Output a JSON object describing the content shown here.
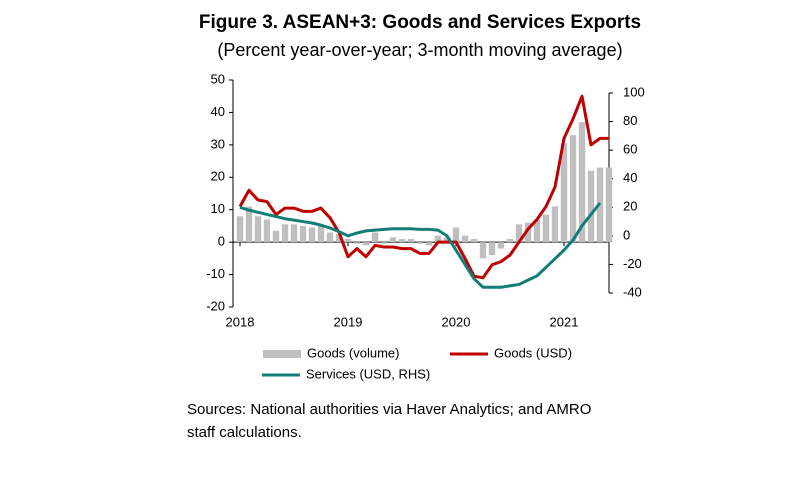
{
  "chart_data": {
    "type": "bar-line",
    "title": "Figure 3. ASEAN+3: Goods and Services Exports",
    "subtitle": "(Percent year-over-year; 3-month moving average)",
    "categories": [
      "2018",
      null,
      null,
      null,
      null,
      null,
      null,
      null,
      null,
      null,
      null,
      null,
      "2019",
      null,
      null,
      null,
      null,
      null,
      null,
      null,
      null,
      null,
      null,
      null,
      "2020",
      null,
      null,
      null,
      null,
      null,
      null,
      null,
      null,
      null,
      null,
      null,
      "2021",
      null,
      null,
      null,
      null,
      null
    ],
    "series": [
      {
        "name": "Goods (volume)",
        "type": "bar",
        "color": "#bfbfbf",
        "values": [
          8,
          11,
          8,
          7,
          3.5,
          5.5,
          5.5,
          5,
          4.5,
          5,
          3,
          2.5,
          1,
          -0.5,
          -1,
          3,
          -0.5,
          1.5,
          1,
          1,
          -0.5,
          -1,
          2,
          1.5,
          4.5,
          2,
          1,
          -5,
          -4,
          -2,
          1,
          5.5,
          6,
          7,
          8.5,
          11,
          30.5,
          33,
          37,
          22,
          23,
          23
        ]
      },
      {
        "name": "Goods (USD)",
        "type": "line",
        "color": "#c00000",
        "values": [
          11,
          16,
          13,
          12.5,
          8.5,
          10.5,
          10.5,
          9.5,
          9.5,
          10.5,
          7.5,
          3,
          -4.5,
          -2,
          -4.5,
          -1,
          -1.5,
          -1.5,
          -2,
          -2,
          -3.5,
          -3.5,
          0,
          0,
          0,
          -5,
          -10.5,
          -11,
          -7,
          -6,
          -4,
          0,
          4,
          7,
          11,
          17,
          32,
          38,
          45,
          30,
          32,
          32
        ]
      },
      {
        "name": "Services (USD, RHS)",
        "type": "line",
        "axis": "y2",
        "color": "#137d78",
        "values": [
          20,
          18,
          16.5,
          15,
          13.5,
          12,
          11,
          10,
          9,
          7.5,
          5.5,
          3,
          0,
          2,
          3.5,
          4,
          4.5,
          5,
          5,
          5,
          4.5,
          4.5,
          4,
          0,
          -10,
          -20,
          -30,
          -36,
          -36,
          -36,
          -35,
          -34,
          -31,
          -28,
          -22,
          -16,
          -10,
          -3,
          7,
          15,
          23,
          null
        ]
      }
    ],
    "ylim": [
      -20,
      50
    ],
    "yticks": [
      -20,
      -10,
      0,
      10,
      20,
      30,
      40,
      50
    ],
    "y2lim": [
      -40,
      100
    ],
    "y2ticks": [
      -40,
      -20,
      0,
      20,
      40,
      60,
      80,
      100
    ],
    "grid": false,
    "source": [
      "Sources: National authorities via Haver Analytics; and AMRO",
      "staff calculations."
    ]
  }
}
